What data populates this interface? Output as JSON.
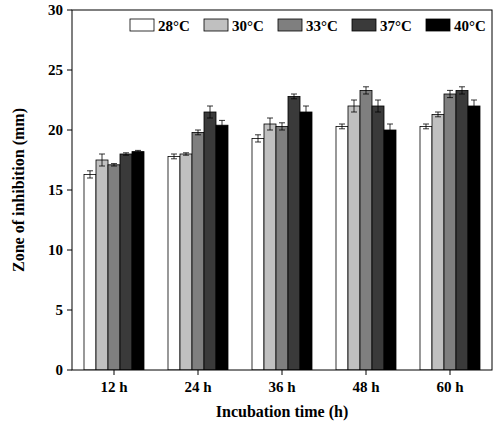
{
  "chart_data": {
    "type": "bar",
    "x_label": "Incubation time (h)",
    "y_label": "Zone of inhibition (mm)",
    "categories": [
      "12 h",
      "24 h",
      "36 h",
      "48 h",
      "60 h"
    ],
    "series": [
      {
        "name": "28°C",
        "color": "#ffffff",
        "values": [
          16.3,
          17.8,
          19.3,
          20.3,
          20.3
        ],
        "errors": [
          0.3,
          0.2,
          0.3,
          0.2,
          0.2
        ]
      },
      {
        "name": "30°C",
        "color": "#c0c0c0",
        "values": [
          17.5,
          18.0,
          20.5,
          22.0,
          21.3
        ],
        "errors": [
          0.5,
          0.1,
          0.5,
          0.5,
          0.2
        ]
      },
      {
        "name": "33°C",
        "color": "#7f7f7f",
        "values": [
          17.1,
          19.8,
          20.3,
          23.3,
          23.0
        ],
        "errors": [
          0.1,
          0.2,
          0.3,
          0.3,
          0.3
        ]
      },
      {
        "name": "37°C",
        "color": "#3a3a3a",
        "values": [
          18.0,
          21.5,
          22.8,
          22.0,
          23.3
        ],
        "errors": [
          0.1,
          0.5,
          0.2,
          0.5,
          0.3
        ]
      },
      {
        "name": "40°C",
        "color": "#000000",
        "values": [
          18.2,
          20.4,
          21.5,
          20.0,
          22.0
        ],
        "errors": [
          0.1,
          0.4,
          0.5,
          0.5,
          0.5
        ]
      }
    ],
    "ylim": [
      0,
      30
    ],
    "yticks": [
      0,
      5,
      10,
      15,
      20,
      25,
      30
    ],
    "legend": "top",
    "grid": false
  }
}
